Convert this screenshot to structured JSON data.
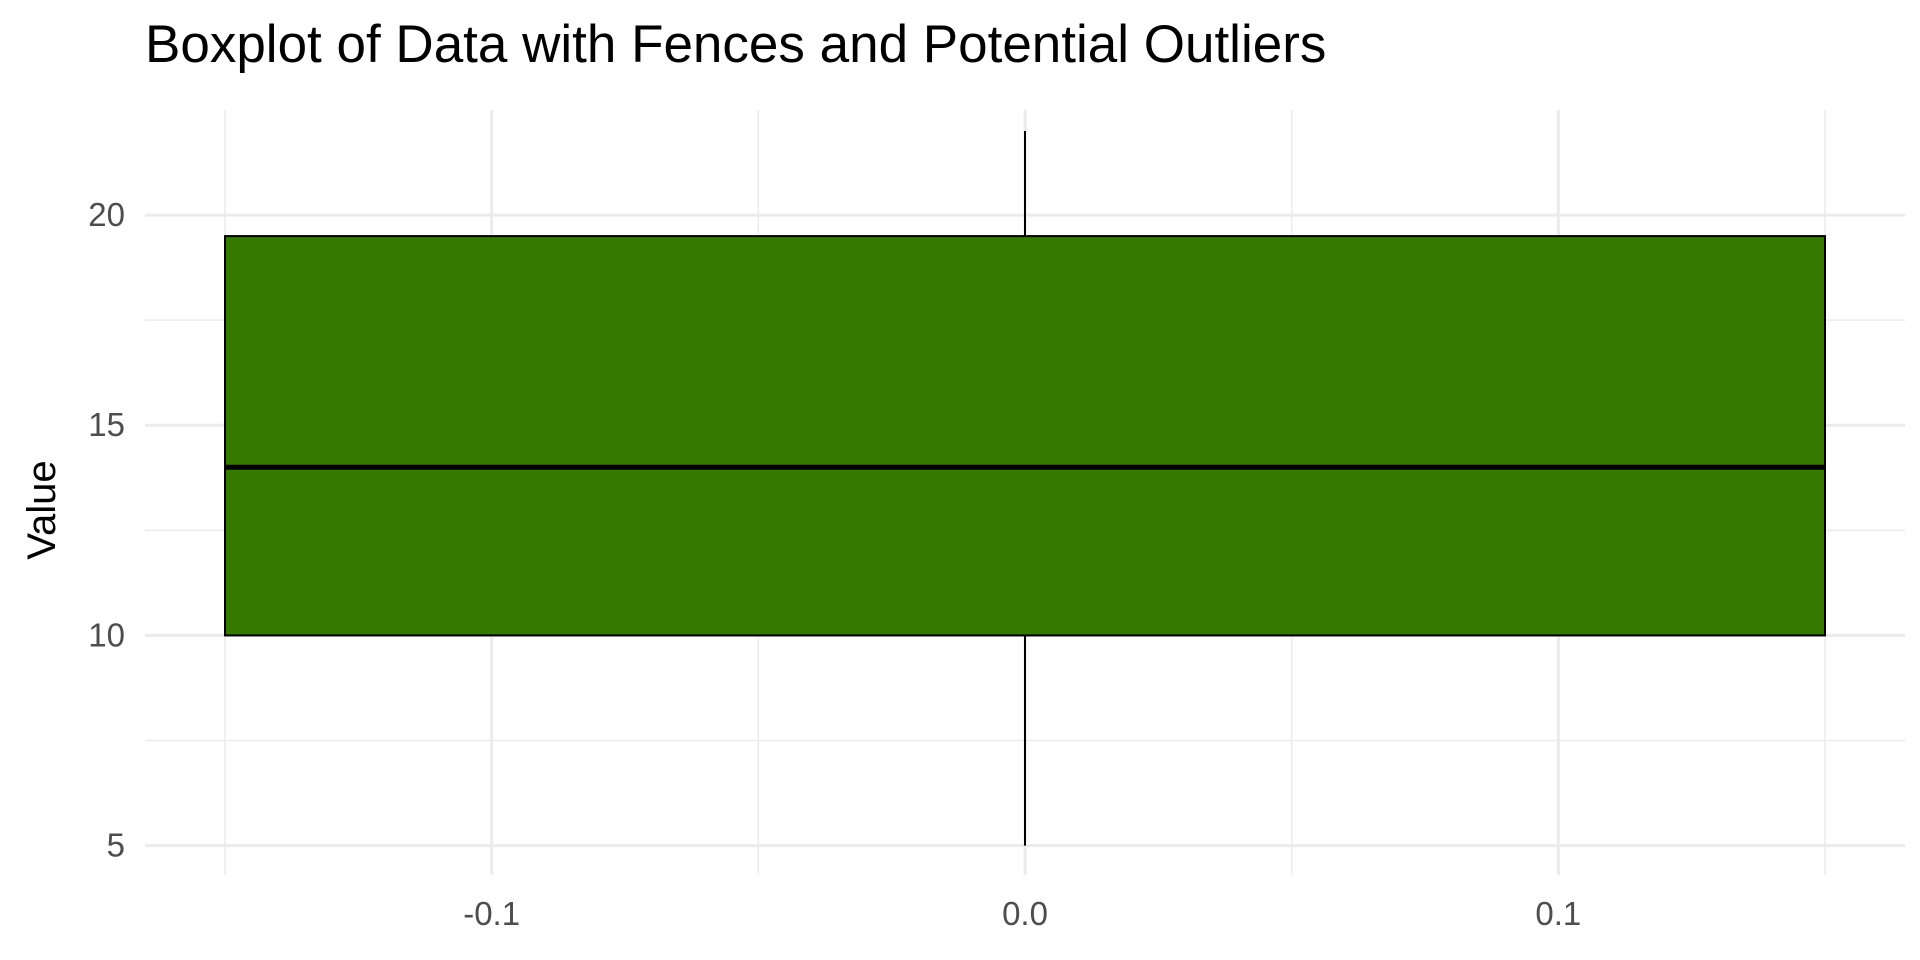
{
  "chart_data": {
    "type": "boxplot",
    "title": "Boxplot of Data with Fences and Potential Outliers",
    "xlabel": "",
    "ylabel": "Value",
    "x_ticks": [
      "-0.1",
      "0.0",
      "0.1"
    ],
    "x_tick_values": [
      -0.1,
      0.0,
      0.1
    ],
    "y_ticks": [
      "5",
      "10",
      "15",
      "20"
    ],
    "y_tick_values": [
      5,
      10,
      15,
      20
    ],
    "xlim": [
      -0.165,
      0.165
    ],
    "ylim": [
      4.3,
      22.5
    ],
    "grid": true,
    "box": {
      "x_center": 0.0,
      "x_range": [
        -0.15,
        0.15
      ],
      "whisker_low": 5,
      "q1": 10,
      "median": 14,
      "q3": 19.5,
      "whisker_high": 22,
      "fill_color": "#367A02",
      "edge_color": "#000000"
    },
    "colors": {
      "grid": "#ebebeb",
      "tick_text": "#4d4d4d",
      "background": "#ffffff"
    }
  }
}
